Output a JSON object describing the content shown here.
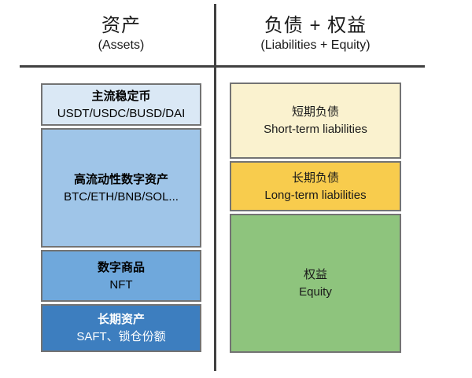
{
  "headers": {
    "assets": {
      "title": "资产",
      "subtitle": "(Assets)"
    },
    "liabilities_equity": {
      "title": "负债 + 权益",
      "subtitle": "(Liabilities + Equity)"
    }
  },
  "diagram": {
    "type": "balance-sheet",
    "divider_color": "#404040",
    "box_border_color": "#737373",
    "assets_column": [
      {
        "title": "主流稳定币",
        "subtitle": "USDT/USDC/BUSD/DAI",
        "fill": "#dae8f5",
        "text": "#000000"
      },
      {
        "title": "高流动性数字资产",
        "subtitle": "BTC/ETH/BNB/SOL...",
        "fill": "#9fc5e8",
        "text": "#000000"
      },
      {
        "title": "数字商品",
        "subtitle": "NFT",
        "fill": "#6fa8dc",
        "text": "#000000"
      },
      {
        "title": "长期资产",
        "subtitle": "SAFT、锁仓份额",
        "fill": "#3d7ebf",
        "text": "#ffffff"
      }
    ],
    "liabilities_equity_column": [
      {
        "title": "短期负债",
        "subtitle": "Short-term liabilities",
        "fill": "#faf2cf",
        "text": "#1a1a1a"
      },
      {
        "title": "长期负债",
        "subtitle": "Long-term liabilities",
        "fill": "#f8cc4d",
        "text": "#1a1a1a"
      },
      {
        "title": "权益",
        "subtitle": "Equity",
        "fill": "#8ec47d",
        "text": "#1a1a1a"
      }
    ]
  }
}
